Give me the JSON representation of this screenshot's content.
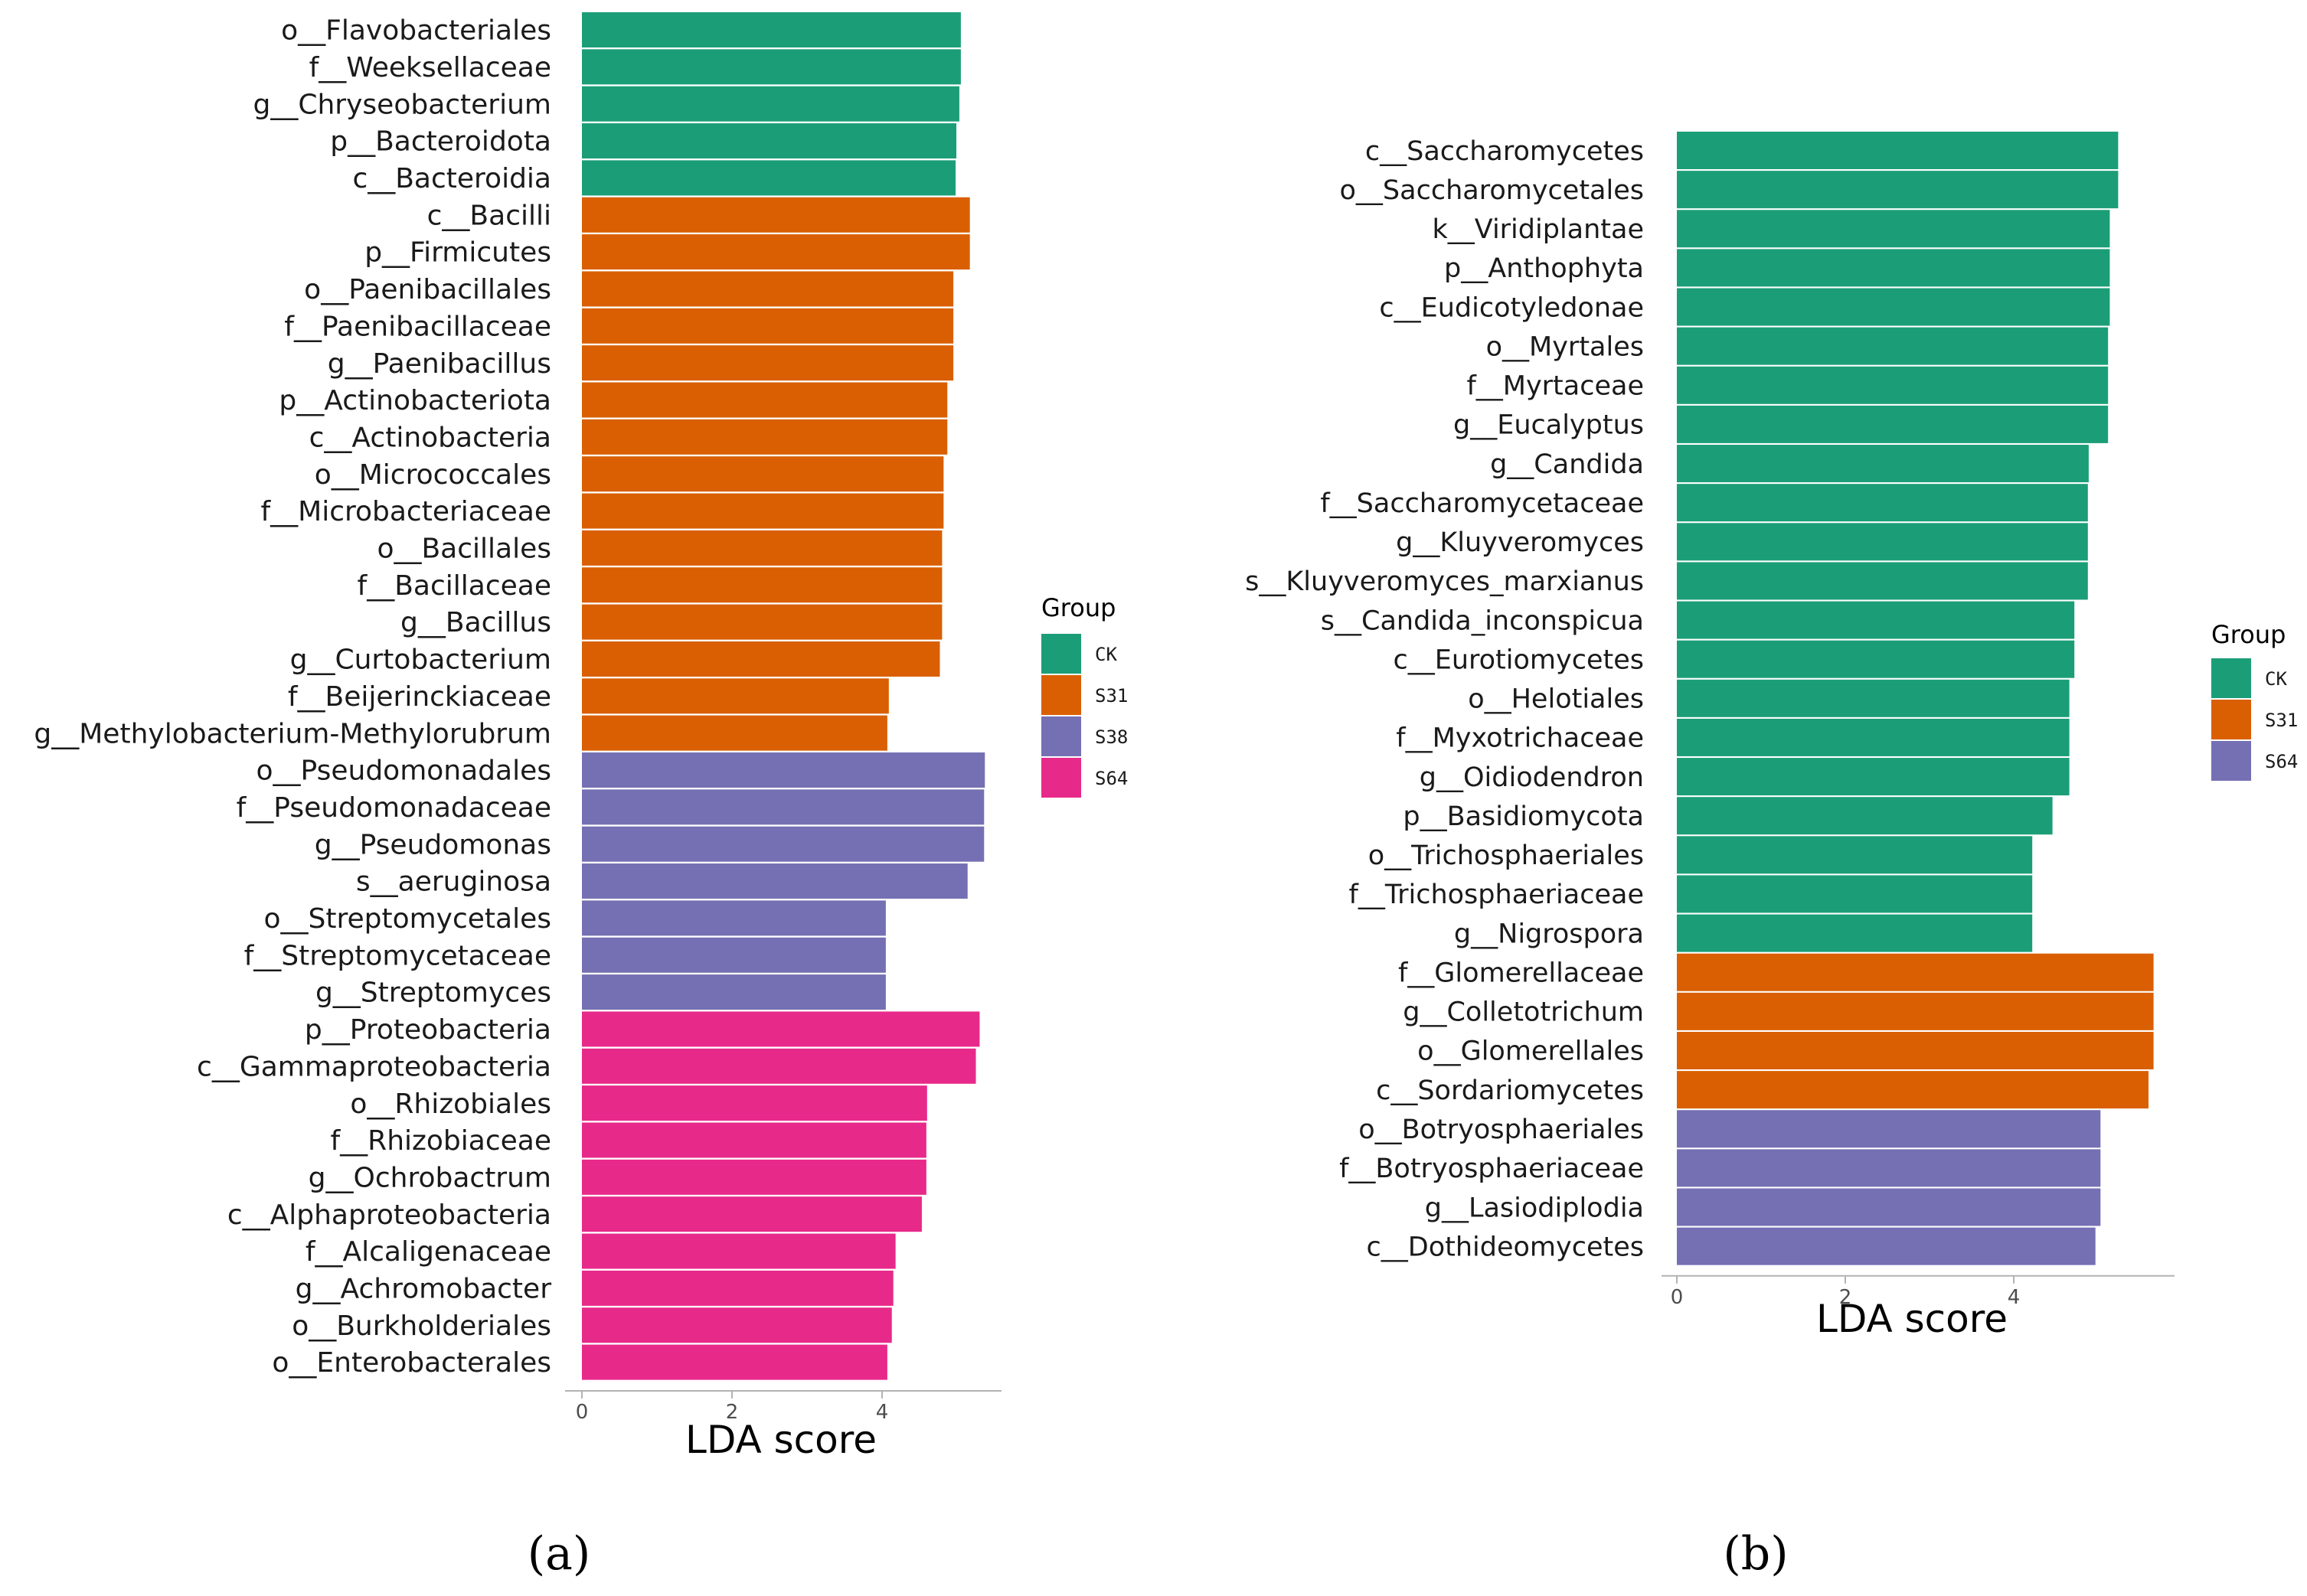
{
  "chart_data": [
    {
      "type": "bar",
      "orientation": "horizontal",
      "panel_label": "(a)",
      "xlabel": "LDA score",
      "xlim": [
        0,
        5.6
      ],
      "xticks": [
        0,
        2,
        4
      ],
      "legend": {
        "title": "Group",
        "placement": "right",
        "entries": [
          {
            "name": "CK",
            "color": "#1b9e77"
          },
          {
            "name": "S31",
            "color": "#d95f02"
          },
          {
            "name": "S38",
            "color": "#7570b3"
          },
          {
            "name": "S64",
            "color": "#e7298a"
          }
        ]
      },
      "bars": [
        {
          "label": "o__Flavobacteriales",
          "value": 5.05,
          "group": "CK"
        },
        {
          "label": "f__Weeksellaceae",
          "value": 5.05,
          "group": "CK"
        },
        {
          "label": "g__Chryseobacterium",
          "value": 5.03,
          "group": "CK"
        },
        {
          "label": "p__Bacteroidota",
          "value": 4.99,
          "group": "CK"
        },
        {
          "label": "c__Bacteroidia",
          "value": 4.98,
          "group": "CK"
        },
        {
          "label": "c__Bacilli",
          "value": 5.17,
          "group": "S31"
        },
        {
          "label": "p__Firmicutes",
          "value": 5.17,
          "group": "S31"
        },
        {
          "label": "o__Paenibacillales",
          "value": 4.95,
          "group": "S31"
        },
        {
          "label": "f__Paenibacillaceae",
          "value": 4.95,
          "group": "S31"
        },
        {
          "label": "g__Paenibacillus",
          "value": 4.95,
          "group": "S31"
        },
        {
          "label": "p__Actinobacteriota",
          "value": 4.87,
          "group": "S31"
        },
        {
          "label": "c__Actinobacteria",
          "value": 4.87,
          "group": "S31"
        },
        {
          "label": "o__Micrococcales",
          "value": 4.82,
          "group": "S31"
        },
        {
          "label": "f__Microbacteriaceae",
          "value": 4.82,
          "group": "S31"
        },
        {
          "label": "o__Bacillales",
          "value": 4.8,
          "group": "S31"
        },
        {
          "label": "f__Bacillaceae",
          "value": 4.8,
          "group": "S31"
        },
        {
          "label": "g__Bacillus",
          "value": 4.8,
          "group": "S31"
        },
        {
          "label": "g__Curtobacterium",
          "value": 4.77,
          "group": "S31"
        },
        {
          "label": "f__Beijerinckiaceae",
          "value": 4.09,
          "group": "S31"
        },
        {
          "label": "g__Methylobacterium-Methylorubrum",
          "value": 4.07,
          "group": "S31"
        },
        {
          "label": "o__Pseudomonadales",
          "value": 5.37,
          "group": "S38"
        },
        {
          "label": "f__Pseudomonadaceae",
          "value": 5.36,
          "group": "S38"
        },
        {
          "label": "g__Pseudomonas",
          "value": 5.36,
          "group": "S38"
        },
        {
          "label": "s__aeruginosa",
          "value": 5.14,
          "group": "S38"
        },
        {
          "label": "o__Streptomycetales",
          "value": 4.05,
          "group": "S38"
        },
        {
          "label": "f__Streptomycetaceae",
          "value": 4.05,
          "group": "S38"
        },
        {
          "label": "g__Streptomyces",
          "value": 4.05,
          "group": "S38"
        },
        {
          "label": "p__Proteobacteria",
          "value": 5.3,
          "group": "S64"
        },
        {
          "label": "c__Gammaproteobacteria",
          "value": 5.25,
          "group": "S64"
        },
        {
          "label": "o__Rhizobiales",
          "value": 4.6,
          "group": "S64"
        },
        {
          "label": "f__Rhizobiaceae",
          "value": 4.59,
          "group": "S64"
        },
        {
          "label": "g__Ochrobactrum",
          "value": 4.59,
          "group": "S64"
        },
        {
          "label": "c__Alphaproteobacteria",
          "value": 4.53,
          "group": "S64"
        },
        {
          "label": "f__Alcaligenaceae",
          "value": 4.18,
          "group": "S64"
        },
        {
          "label": "g__Achromobacter",
          "value": 4.15,
          "group": "S64"
        },
        {
          "label": "o__Burkholderiales",
          "value": 4.13,
          "group": "S64"
        },
        {
          "label": "o__Enterobacterales",
          "value": 4.07,
          "group": "S64"
        }
      ]
    },
    {
      "type": "bar",
      "orientation": "horizontal",
      "panel_label": "(b)",
      "xlabel": "LDA score",
      "xlim": [
        0,
        5.9
      ],
      "xticks": [
        0,
        2,
        4
      ],
      "legend": {
        "title": "Group",
        "placement": "right",
        "entries": [
          {
            "name": "CK",
            "color": "#1b9e77"
          },
          {
            "name": "S31",
            "color": "#d95f02"
          },
          {
            "name": "S64",
            "color": "#7570b3"
          }
        ]
      },
      "bars": [
        {
          "label": "c__Saccharomycetes",
          "value": 5.24,
          "group": "CK"
        },
        {
          "label": "o__Saccharomycetales",
          "value": 5.24,
          "group": "CK"
        },
        {
          "label": "k__Viridiplantae",
          "value": 5.14,
          "group": "CK"
        },
        {
          "label": "p__Anthophyta",
          "value": 5.14,
          "group": "CK"
        },
        {
          "label": "c__Eudicotyledonae",
          "value": 5.14,
          "group": "CK"
        },
        {
          "label": "o__Myrtales",
          "value": 5.12,
          "group": "CK"
        },
        {
          "label": "f__Myrtaceae",
          "value": 5.12,
          "group": "CK"
        },
        {
          "label": "g__Eucalyptus",
          "value": 5.12,
          "group": "CK"
        },
        {
          "label": "g__Candida",
          "value": 4.89,
          "group": "CK"
        },
        {
          "label": "f__Saccharomycetaceae",
          "value": 4.88,
          "group": "CK"
        },
        {
          "label": "g__Kluyveromyces",
          "value": 4.88,
          "group": "CK"
        },
        {
          "label": "s__Kluyveromyces_marxianus",
          "value": 4.88,
          "group": "CK"
        },
        {
          "label": "s__Candida_inconspicua",
          "value": 4.72,
          "group": "CK"
        },
        {
          "label": "c__Eurotiomycetes",
          "value": 4.72,
          "group": "CK"
        },
        {
          "label": "o__Helotiales",
          "value": 4.66,
          "group": "CK"
        },
        {
          "label": "f__Myxotrichaceae",
          "value": 4.66,
          "group": "CK"
        },
        {
          "label": "g__Oidiodendron",
          "value": 4.66,
          "group": "CK"
        },
        {
          "label": "p__Basidiomycota",
          "value": 4.46,
          "group": "CK"
        },
        {
          "label": "o__Trichosphaeriales",
          "value": 4.22,
          "group": "CK"
        },
        {
          "label": "f__Trichosphaeriaceae",
          "value": 4.22,
          "group": "CK"
        },
        {
          "label": "g__Nigrospora",
          "value": 4.22,
          "group": "CK"
        },
        {
          "label": "f__Glomerellaceae",
          "value": 5.66,
          "group": "S31"
        },
        {
          "label": "g__Colletotrichum",
          "value": 5.66,
          "group": "S31"
        },
        {
          "label": "o__Glomerellales",
          "value": 5.66,
          "group": "S31"
        },
        {
          "label": "c__Sordariomycetes",
          "value": 5.6,
          "group": "S31"
        },
        {
          "label": "o__Botryosphaeriales",
          "value": 5.03,
          "group": "S64"
        },
        {
          "label": "f__Botryosphaeriaceae",
          "value": 5.03,
          "group": "S64"
        },
        {
          "label": "g__Lasiodiplodia",
          "value": 5.03,
          "group": "S64"
        },
        {
          "label": "c__Dothideomycetes",
          "value": 4.97,
          "group": "S64"
        }
      ]
    }
  ]
}
